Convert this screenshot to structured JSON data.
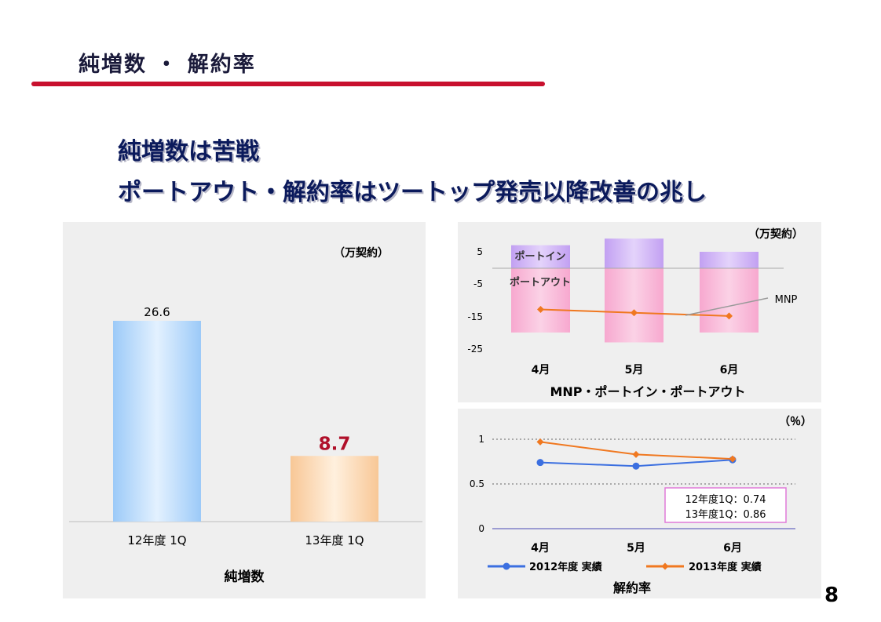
{
  "title": "純増数 ・ 解約率",
  "headline": {
    "line1": "純増数は苦戦",
    "line2": "ポートアウト・解約率はツートップ発売以降改善の兆し"
  },
  "page_number": "8",
  "colors": {
    "accent_red": "#c8102e",
    "headline_navy": "#0b1a5c",
    "bar_blue": "#a9d2fb",
    "bar_orange": "#fbd4a8",
    "highlight_red": "#b0102a",
    "port_in": "#c9a8f5",
    "port_out": "#f7b3d6",
    "series_2012": "#3b6fe0",
    "series_2013": "#f07820"
  },
  "chart_data": [
    {
      "type": "bar",
      "title": "",
      "xlabel": "純増数",
      "ylabel": "",
      "unit": "（万契約）",
      "categories": [
        "12年度 1Q",
        "13年度 1Q"
      ],
      "values": [
        26.6,
        8.7
      ],
      "value_labels": [
        "26.6",
        "8.7"
      ],
      "ylim": [
        0,
        30
      ]
    },
    {
      "type": "bar",
      "title": "",
      "xlabel": "MNP・ポートイン・ポートアウト",
      "ylabel": "",
      "unit": "（万契約）",
      "categories": [
        "4月",
        "5月",
        "6月"
      ],
      "y_ticks": [
        "5",
        "-5",
        "-15",
        "-25"
      ],
      "ylim": [
        -25,
        5
      ],
      "series": [
        {
          "name": "ポートイン",
          "type": "bar",
          "values": [
            7,
            9,
            5
          ]
        },
        {
          "name": "ポートアウト",
          "type": "bar",
          "values": [
            -19.5,
            -22.5,
            -19.5
          ]
        },
        {
          "name": "MNP",
          "type": "line",
          "values": [
            -12.5,
            -13.5,
            -14.5
          ]
        }
      ]
    },
    {
      "type": "line",
      "title": "",
      "xlabel": "解約率",
      "ylabel": "",
      "unit": "（％）",
      "categories": [
        "4月",
        "5月",
        "6月"
      ],
      "y_ticks": [
        "1",
        "0.5",
        "0"
      ],
      "ylim": [
        0,
        1
      ],
      "series": [
        {
          "name": "2012年度 実績",
          "values": [
            0.74,
            0.7,
            0.77
          ]
        },
        {
          "name": "2013年度 実績",
          "values": [
            0.97,
            0.83,
            0.78
          ]
        }
      ],
      "annotation": [
        "12年度1Q：0.74",
        "13年度1Q：0.86"
      ]
    }
  ]
}
